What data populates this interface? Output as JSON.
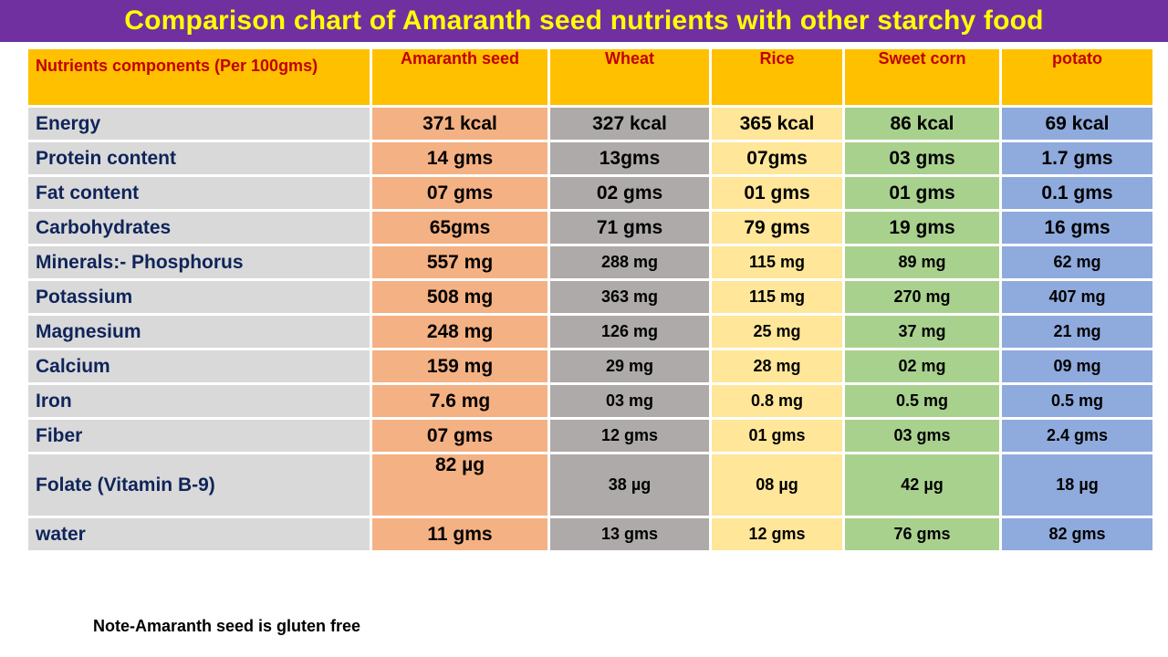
{
  "title": "Comparison chart of Amaranth seed nutrients with other starchy  food",
  "colors": {
    "title_bg": "#7030a0",
    "title_text": "#ffff00",
    "header_bg": "#ffc000",
    "header_text": "#c00000",
    "label_bg": "#d9d9d9",
    "amaranth_bg": "#f4b183",
    "wheat_bg": "#aeaaaa",
    "rice_bg": "#ffe699",
    "sweet_corn_bg": "#a9d18e",
    "potato_bg": "#8faadc"
  },
  "table": {
    "headers": [
      "Nutrients components (Per 100gms)",
      "Amaranth seed",
      "Wheat",
      "Rice",
      "Sweet corn",
      "potato"
    ],
    "rows": [
      [
        "Energy",
        "371 kcal",
        "327 kcal",
        "365 kcal",
        "86 kcal",
        "69 kcal"
      ],
      [
        "Protein content",
        "14 gms",
        "13gms",
        "07gms",
        "03 gms",
        "1.7 gms"
      ],
      [
        "Fat content",
        "07 gms",
        "02 gms",
        "01 gms",
        "01 gms",
        "0.1 gms"
      ],
      [
        "Carbohydrates",
        "65gms",
        "71 gms",
        "79 gms",
        "19 gms",
        "16 gms"
      ],
      [
        "Minerals:- Phosphorus",
        "557 mg",
        "288 mg",
        "115 mg",
        "89 mg",
        "62 mg"
      ],
      [
        "Potassium",
        "508 mg",
        "363 mg",
        "115 mg",
        "270 mg",
        "407 mg"
      ],
      [
        "Magnesium",
        "248 mg",
        "126 mg",
        "25 mg",
        "37 mg",
        "21 mg"
      ],
      [
        "Calcium",
        "159 mg",
        "29 mg",
        "28 mg",
        "02 mg",
        "09 mg"
      ],
      [
        "Iron",
        "7.6 mg",
        "03 mg",
        "0.8 mg",
        "0.5 mg",
        "0.5 mg"
      ],
      [
        "Fiber",
        "07 gms",
        "12 gms",
        "01 gms",
        "03 gms",
        "2.4 gms"
      ],
      [
        "Folate (Vitamin B-9)",
        "82 µg",
        "38 µg",
        "08 µg",
        "42 µg",
        "18 µg"
      ],
      [
        "water",
        "11 gms",
        "13 gms",
        "12 gms",
        "76 gms",
        "82 gms"
      ]
    ]
  },
  "note": "Note-Amaranth seed is gluten free"
}
